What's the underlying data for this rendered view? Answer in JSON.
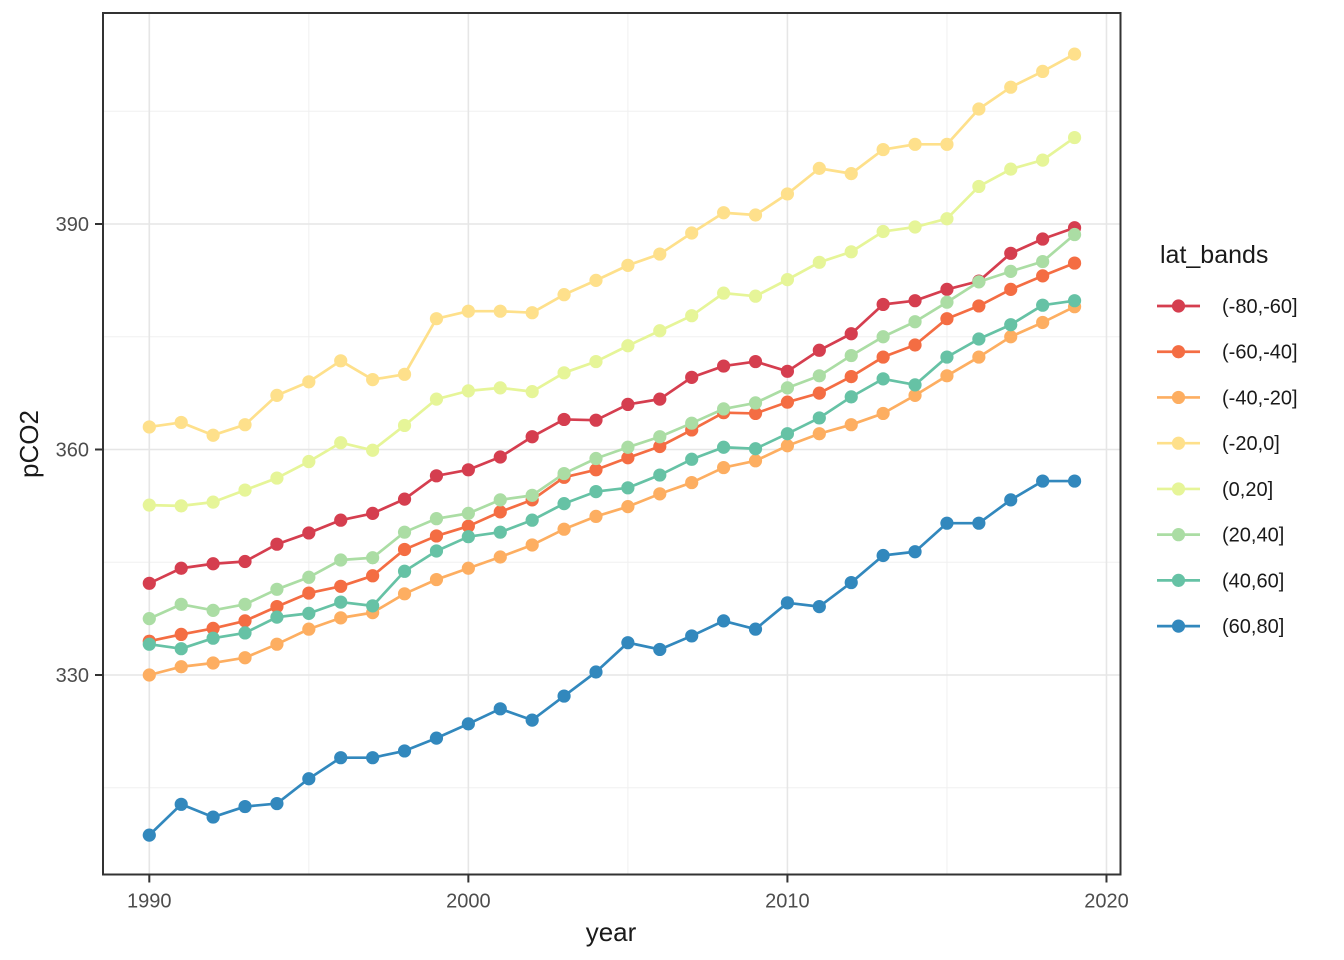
{
  "figure": {
    "y_axis_label": "pCO2",
    "x_axis_label": "year",
    "legend_title": "lat_bands"
  },
  "chart_data": {
    "type": "line",
    "title": "",
    "xlabel": "year",
    "ylabel": "pCO2",
    "legend_title": "lat_bands",
    "legend_position": "right",
    "grid": true,
    "panel_border_color": "#333333",
    "major_grid_color": "#e6e6e6",
    "minor_grid_color": "#f0f0f0",
    "x": [
      1990,
      1991,
      1992,
      1993,
      1994,
      1995,
      1996,
      1997,
      1998,
      1999,
      2000,
      2001,
      2002,
      2003,
      2004,
      2005,
      2006,
      2007,
      2008,
      2009,
      2010,
      2011,
      2012,
      2013,
      2014,
      2015,
      2016,
      2017,
      2018,
      2019
    ],
    "x_ticks": [
      1990,
      2000,
      2010,
      2020
    ],
    "x_minor_ticks": [
      1995,
      2005,
      2015
    ],
    "y_ticks": [
      330,
      360,
      390
    ],
    "y_minor_ticks": [
      315,
      345,
      375,
      405
    ],
    "xlim": [
      1988.5,
      2020.45
    ],
    "ylim": [
      303.5,
      418.1
    ],
    "series": [
      {
        "name": "(-80,-60]",
        "color": "#d53e4f",
        "values": [
          342.2,
          344.2,
          344.8,
          345.1,
          347.4,
          348.9,
          350.6,
          351.5,
          353.4,
          356.5,
          357.3,
          359.0,
          361.7,
          364.0,
          363.9,
          366.0,
          366.7,
          369.6,
          371.1,
          371.7,
          370.4,
          373.2,
          375.4,
          379.3,
          379.8,
          381.3,
          382.4,
          386.1,
          388.0,
          389.5
        ]
      },
      {
        "name": "(-60,-40]",
        "color": "#f46d43",
        "values": [
          334.5,
          335.4,
          336.2,
          337.2,
          339.1,
          340.9,
          341.8,
          343.2,
          346.7,
          348.5,
          349.8,
          351.7,
          353.3,
          356.3,
          357.3,
          358.9,
          360.4,
          362.6,
          364.9,
          364.8,
          366.3,
          367.5,
          369.7,
          372.3,
          373.9,
          377.4,
          379.1,
          381.3,
          383.1,
          384.8
        ]
      },
      {
        "name": "(-40,-20]",
        "color": "#fdae61",
        "values": [
          330.0,
          331.1,
          331.6,
          332.3,
          334.1,
          336.1,
          337.6,
          338.3,
          340.8,
          342.7,
          344.2,
          345.7,
          347.3,
          349.4,
          351.1,
          352.4,
          354.1,
          355.6,
          357.6,
          358.5,
          360.5,
          362.1,
          363.3,
          364.8,
          367.2,
          369.8,
          372.3,
          375.0,
          376.9,
          379.0
        ]
      },
      {
        "name": "(-20,0]",
        "color": "#fee08b",
        "values": [
          363.0,
          363.6,
          361.9,
          363.3,
          367.2,
          369.0,
          371.8,
          369.3,
          370.0,
          377.4,
          378.4,
          378.4,
          378.2,
          380.6,
          382.5,
          384.5,
          386.0,
          388.8,
          391.5,
          391.2,
          394.0,
          397.4,
          396.7,
          399.9,
          400.6,
          400.6,
          405.3,
          408.2,
          410.3,
          412.6
        ]
      },
      {
        "name": "(0,20]",
        "color": "#e6f598",
        "values": [
          352.6,
          352.5,
          353.0,
          354.6,
          356.2,
          358.4,
          360.9,
          359.9,
          363.2,
          366.7,
          367.8,
          368.2,
          367.7,
          370.2,
          371.7,
          373.8,
          375.8,
          377.8,
          380.8,
          380.4,
          382.6,
          384.9,
          386.3,
          389.0,
          389.6,
          390.7,
          395.0,
          397.3,
          398.5,
          401.5
        ]
      },
      {
        "name": "(20,40]",
        "color": "#abdda4",
        "values": [
          337.5,
          339.4,
          338.6,
          339.4,
          341.4,
          343.0,
          345.3,
          345.6,
          349.0,
          350.8,
          351.5,
          353.3,
          353.9,
          356.8,
          358.8,
          360.3,
          361.7,
          363.5,
          365.4,
          366.2,
          368.2,
          369.8,
          372.5,
          375.0,
          377.0,
          379.6,
          382.3,
          383.7,
          385.0,
          388.6
        ]
      },
      {
        "name": "(40,60]",
        "color": "#66c2a5",
        "values": [
          334.1,
          333.5,
          334.9,
          335.6,
          337.7,
          338.2,
          339.7,
          339.2,
          343.8,
          346.5,
          348.4,
          349.0,
          350.6,
          352.8,
          354.4,
          354.9,
          356.6,
          358.7,
          360.3,
          360.1,
          362.1,
          364.2,
          367.0,
          369.4,
          368.6,
          372.3,
          374.7,
          376.6,
          379.2,
          379.8
        ]
      },
      {
        "name": "(60,80]",
        "color": "#3288bd",
        "values": [
          308.7,
          312.8,
          311.1,
          312.5,
          312.9,
          316.2,
          319.0,
          319.0,
          319.9,
          321.6,
          323.5,
          325.5,
          324.0,
          327.2,
          330.4,
          334.3,
          333.4,
          335.2,
          337.2,
          336.1,
          339.6,
          339.1,
          342.3,
          345.9,
          346.4,
          350.2,
          350.2,
          353.3,
          355.8,
          355.8
        ]
      }
    ]
  }
}
